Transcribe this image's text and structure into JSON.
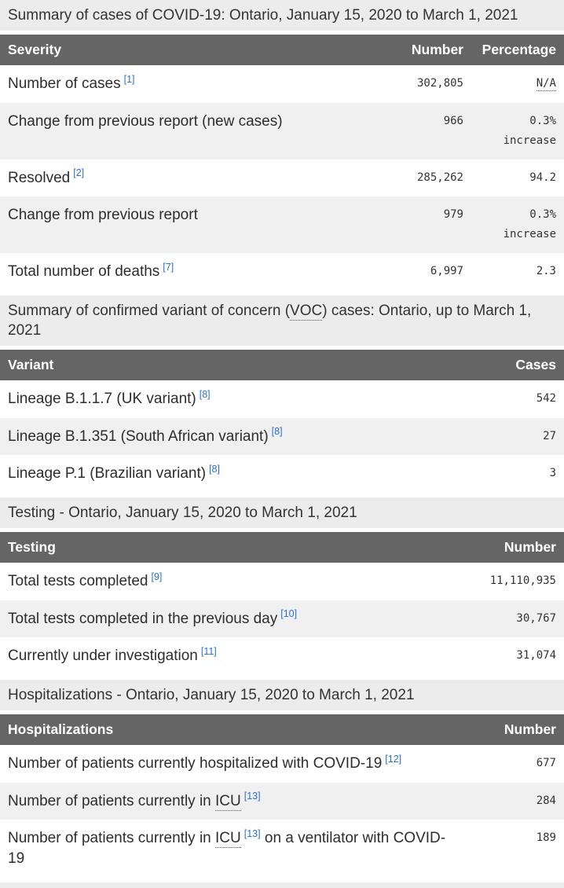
{
  "theme": {
    "link_color": "#2b6fd4",
    "header_bg": "#656565",
    "caption_bg": "#ececec",
    "alt_row_bg": "#f0f0f0"
  },
  "tables": [
    {
      "caption_parts": [
        {
          "type": "text",
          "text": "Summary of cases of COVID-19: Ontario, January 15, 2020 to March 1, 2021"
        }
      ],
      "columns": [
        {
          "label": "Severity",
          "align": "left"
        },
        {
          "label": "Number",
          "align": "right"
        },
        {
          "label": "Percentage",
          "align": "right"
        }
      ],
      "rows": [
        {
          "label_parts": [
            {
              "type": "text",
              "text": "Number of cases"
            },
            {
              "type": "footnote",
              "text": "[1]"
            }
          ],
          "cells": [
            [
              {
                "type": "text",
                "text": "302,805"
              }
            ],
            [
              {
                "type": "abbr",
                "text": "N/A"
              }
            ]
          ]
        },
        {
          "label_parts": [
            {
              "type": "text",
              "text": "Change from previous report (new cases)"
            }
          ],
          "cells": [
            [
              {
                "type": "text",
                "text": "966"
              }
            ],
            [
              {
                "type": "text",
                "text": "0.3% increase"
              }
            ]
          ]
        },
        {
          "label_parts": [
            {
              "type": "text",
              "text": "Resolved"
            },
            {
              "type": "footnote",
              "text": "[2]"
            }
          ],
          "cells": [
            [
              {
                "type": "text",
                "text": "285,262"
              }
            ],
            [
              {
                "type": "text",
                "text": "94.2"
              }
            ]
          ]
        },
        {
          "label_parts": [
            {
              "type": "text",
              "text": "Change from previous report"
            }
          ],
          "cells": [
            [
              {
                "type": "text",
                "text": "979"
              }
            ],
            [
              {
                "type": "text",
                "text": "0.3% increase"
              }
            ]
          ]
        },
        {
          "label_parts": [
            {
              "type": "text",
              "text": "Total number of deaths"
            },
            {
              "type": "footnote",
              "text": "[7]"
            }
          ],
          "cells": [
            [
              {
                "type": "text",
                "text": "6,997"
              }
            ],
            [
              {
                "type": "text",
                "text": "2.3"
              }
            ]
          ]
        }
      ]
    },
    {
      "caption_parts": [
        {
          "type": "text",
          "text": "Summary of confirmed variant of concern ("
        },
        {
          "type": "abbr",
          "text": "VOC"
        },
        {
          "type": "text",
          "text": ") cases: Ontario, up to March 1, 2021"
        }
      ],
      "columns": [
        {
          "label": "Variant",
          "align": "left"
        },
        {
          "label": "Cases",
          "align": "right"
        }
      ],
      "rows": [
        {
          "label_parts": [
            {
              "type": "text",
              "text": "Lineage B.1.1.7 (UK variant)"
            },
            {
              "type": "footnote",
              "text": "[8]"
            }
          ],
          "cells": [
            [
              {
                "type": "text",
                "text": "542"
              }
            ]
          ]
        },
        {
          "label_parts": [
            {
              "type": "text",
              "text": "Lineage B.1.351 (South African variant)"
            },
            {
              "type": "footnote",
              "text": "[8]"
            }
          ],
          "cells": [
            [
              {
                "type": "text",
                "text": "27"
              }
            ]
          ]
        },
        {
          "label_parts": [
            {
              "type": "text",
              "text": "Lineage P.1 (Brazilian variant)"
            },
            {
              "type": "footnote",
              "text": "[8]"
            }
          ],
          "cells": [
            [
              {
                "type": "text",
                "text": "3"
              }
            ]
          ]
        }
      ]
    },
    {
      "caption_parts": [
        {
          "type": "text",
          "text": "Testing - Ontario, January 15, 2020 to March 1, 2021"
        }
      ],
      "columns": [
        {
          "label": "Testing",
          "align": "left"
        },
        {
          "label": "Number",
          "align": "right"
        }
      ],
      "rows": [
        {
          "label_parts": [
            {
              "type": "text",
              "text": "Total tests completed"
            },
            {
              "type": "footnote",
              "text": "[9]"
            }
          ],
          "cells": [
            [
              {
                "type": "text",
                "text": "11,110,935"
              }
            ]
          ]
        },
        {
          "label_parts": [
            {
              "type": "text",
              "text": "Total tests completed in the previous day"
            },
            {
              "type": "footnote",
              "text": "[10]"
            }
          ],
          "cells": [
            [
              {
                "type": "text",
                "text": "30,767"
              }
            ]
          ]
        },
        {
          "label_parts": [
            {
              "type": "text",
              "text": "Currently under investigation"
            },
            {
              "type": "footnote",
              "text": "[11]"
            }
          ],
          "cells": [
            [
              {
                "type": "text",
                "text": "31,074"
              }
            ]
          ]
        }
      ]
    },
    {
      "caption_parts": [
        {
          "type": "text",
          "text": "Hospitalizations - Ontario, January 15, 2020 to March 1, 2021"
        }
      ],
      "columns": [
        {
          "label": "Hospitalizations",
          "align": "left"
        },
        {
          "label": "Number",
          "align": "right"
        }
      ],
      "rows": [
        {
          "label_parts": [
            {
              "type": "text",
              "text": "Number of patients currently hospitalized with COVID-19"
            },
            {
              "type": "footnote",
              "text": "[12]"
            }
          ],
          "cells": [
            [
              {
                "type": "text",
                "text": "677"
              }
            ]
          ]
        },
        {
          "label_parts": [
            {
              "type": "text",
              "text": "Number of patients currently in "
            },
            {
              "type": "abbr",
              "text": "ICU"
            },
            {
              "type": "footnote",
              "text": "[13]"
            }
          ],
          "cells": [
            [
              {
                "type": "text",
                "text": "284"
              }
            ]
          ]
        },
        {
          "label_parts": [
            {
              "type": "text",
              "text": "Number of patients currently in "
            },
            {
              "type": "abbr",
              "text": "ICU"
            },
            {
              "type": "footnote",
              "text": "[13]"
            },
            {
              "type": "text",
              "text": " on a ventilator with COVID-19"
            }
          ],
          "cells": [
            [
              {
                "type": "text",
                "text": "189"
              }
            ]
          ]
        }
      ]
    }
  ]
}
